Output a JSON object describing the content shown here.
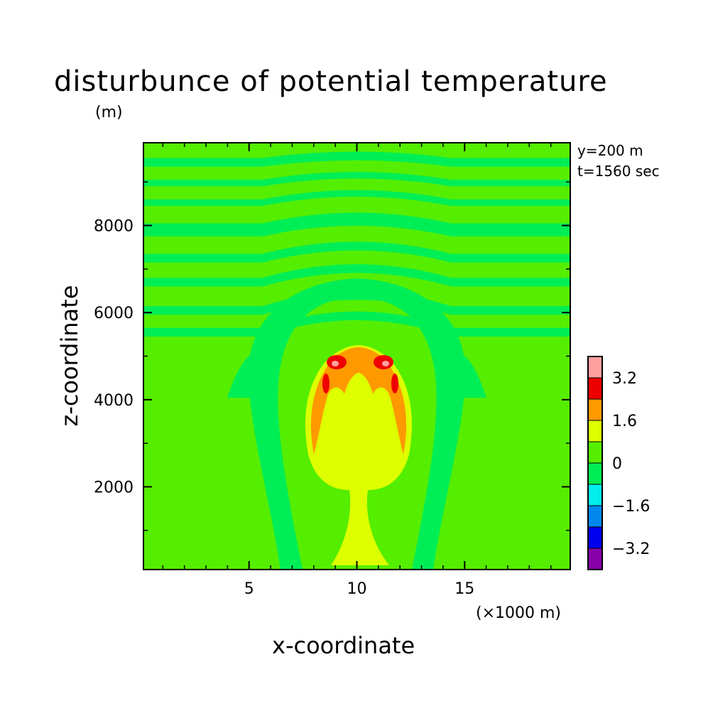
{
  "chart_data": {
    "type": "heatmap",
    "title": "disturbunce of potential temperature",
    "y_unit": "(m)",
    "info_y": "y=200 m",
    "info_t": "t=1560 sec",
    "xlabel": "x-coordinate",
    "x_unit": "(×1000 m)",
    "ylabel": "z-coordinate",
    "xlim": [
      0.1,
      19.9
    ],
    "ylim": [
      100,
      9900
    ],
    "x_ticks": [
      5,
      10,
      15
    ],
    "y_ticks": [
      2000,
      4000,
      6000,
      8000
    ],
    "colorbar": {
      "levels": [
        -4.0,
        -3.2,
        -2.4,
        -1.6,
        -0.8,
        0,
        0.8,
        1.6,
        2.4,
        3.2,
        4.0
      ],
      "labels": [
        "3.2",
        "1.6",
        "0",
        "-1.6",
        "-3.2"
      ],
      "colors": [
        "#8800aa",
        "#0000ee",
        "#0088ee",
        "#00eeee",
        "#00ee55",
        "#55ee00",
        "#ddff00",
        "#ff9900",
        "#ee0000",
        "#ffa0a0"
      ]
    },
    "background_level_color": "#55ee00",
    "features": [
      {
        "description_level": "0 to -0.8 bands",
        "color": "#00ee55"
      },
      {
        "description_level": "0.8 to 1.6 warm plume",
        "color": "#ddff00"
      },
      {
        "description_level": "1.6 to 2.4 cap",
        "color": "#ff9900"
      },
      {
        "description_level": "2.4 to 3.2 core",
        "color": "#ee0000"
      },
      {
        "description_level": "above 3.2 peak",
        "color": "#ffa0a0"
      }
    ]
  }
}
